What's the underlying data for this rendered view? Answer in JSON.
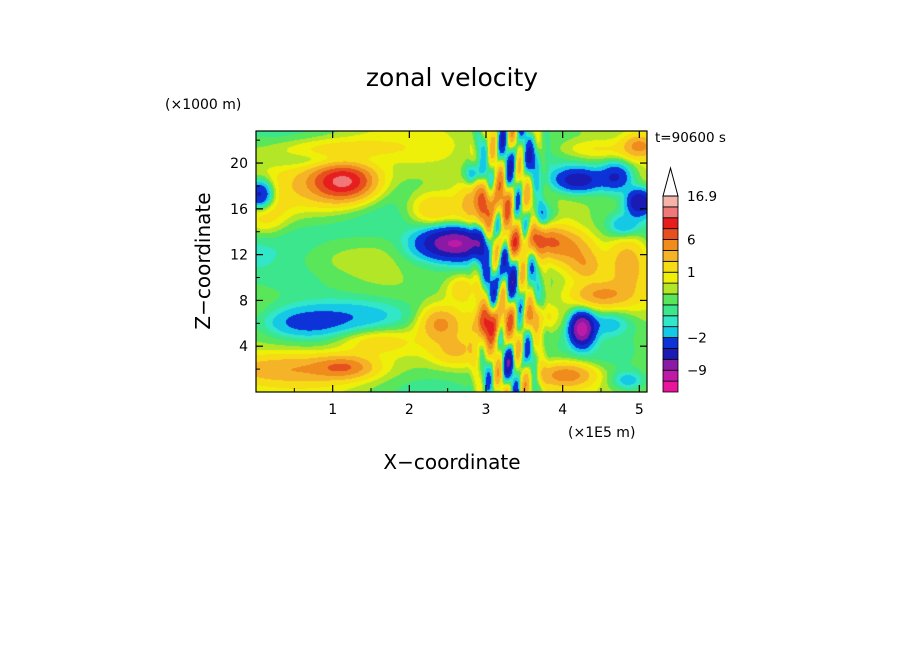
{
  "chart_data": {
    "type": "heatmap",
    "title": "zonal velocity",
    "xlabel": "X−coordinate",
    "ylabel": "Z−coordinate",
    "x_unit": "(×1E5 m)",
    "y_unit": "(×1000 m)",
    "time_label": "t=90600 s",
    "xlim": [
      0,
      5.1
    ],
    "ylim": [
      0,
      22.8
    ],
    "x_ticks": [
      1,
      2,
      3,
      4,
      5
    ],
    "y_ticks": [
      4,
      8,
      12,
      16,
      20
    ],
    "x_tick_labels": [
      "1",
      "2",
      "3",
      "4",
      "5"
    ],
    "y_tick_labels": [
      "4",
      "8",
      "12",
      "16",
      "20"
    ],
    "colorbar": {
      "labels": [
        {
          "text": "16.9",
          "value": 16.9
        },
        {
          "text": "6",
          "value": 6
        },
        {
          "text": "1",
          "value": 1
        },
        {
          "text": "−2",
          "value": -2
        },
        {
          "text": "−9",
          "value": -9
        }
      ],
      "bins": [
        {
          "value": -13,
          "color": "#e8149c"
        },
        {
          "value": -10,
          "color": "#be1aa8"
        },
        {
          "value": -7.5,
          "color": "#8a1aa6"
        },
        {
          "value": -5,
          "color": "#1a1ab4"
        },
        {
          "value": -3,
          "color": "#0c32d8"
        },
        {
          "value": -1.75,
          "color": "#14c8e6"
        },
        {
          "value": -1.25,
          "color": "#32e6c8"
        },
        {
          "value": -0.75,
          "color": "#3ce68c"
        },
        {
          "value": -0.25,
          "color": "#5ae65a"
        },
        {
          "value": 0.25,
          "color": "#b4e628"
        },
        {
          "value": 0.75,
          "color": "#eef00a"
        },
        {
          "value": 1.5,
          "color": "#f5dc14"
        },
        {
          "value": 3,
          "color": "#f5b428"
        },
        {
          "value": 4.5,
          "color": "#f08c1e"
        },
        {
          "value": 6.5,
          "color": "#e6501e"
        },
        {
          "value": 9,
          "color": "#e61e1e"
        },
        {
          "value": 11.5,
          "color": "#f07878"
        },
        {
          "value": 14.5,
          "color": "#f5b4aa"
        },
        {
          "value": 18,
          "color": "#ffffff"
        }
      ]
    },
    "field_blobs": [
      {
        "x": 1.15,
        "z": 18.4,
        "amp": 9,
        "rx": 0.35,
        "rz": 1.4
      },
      {
        "x": 0.95,
        "z": 18.2,
        "amp": 3,
        "rx": 0.6,
        "rz": 2.2
      },
      {
        "x": 0.45,
        "z": 2.0,
        "amp": 3,
        "rx": 1.0,
        "rz": 1.2
      },
      {
        "x": 1.15,
        "z": 2.2,
        "amp": 4,
        "rx": 0.35,
        "rz": 0.9
      },
      {
        "x": 1.55,
        "z": 4.4,
        "amp": 2,
        "rx": 0.5,
        "rz": 1.2
      },
      {
        "x": 0.1,
        "z": 15.5,
        "amp": 2,
        "rx": 0.3,
        "rz": 2.0
      },
      {
        "x": 1.0,
        "z": 21.2,
        "amp": 1.5,
        "rx": 0.8,
        "rz": 1.0
      },
      {
        "x": 1.4,
        "z": 6.6,
        "amp": -1.6,
        "rx": 0.9,
        "rz": 1.6
      },
      {
        "x": 0.6,
        "z": 6.0,
        "amp": -1.8,
        "rx": 0.5,
        "rz": 1.2
      },
      {
        "x": 0.25,
        "z": 12.8,
        "amp": -0.8,
        "rx": 1.0,
        "rz": 2.5
      },
      {
        "x": 1.3,
        "z": 14.0,
        "amp": -0.6,
        "rx": 0.9,
        "rz": 2.0
      },
      {
        "x": 0.8,
        "z": 10.0,
        "amp": -0.6,
        "rx": 1.0,
        "rz": 1.5
      },
      {
        "x": 0.05,
        "z": 17.2,
        "amp": -6,
        "rx": 0.18,
        "rz": 1.3
      },
      {
        "x": 0.95,
        "z": 20.2,
        "amp": -1.5,
        "rx": 0.6,
        "rz": 0.8
      },
      {
        "x": 2.6,
        "z": 13.0,
        "amp": -9,
        "rx": 0.42,
        "rz": 1.3
      },
      {
        "x": 2.3,
        "z": 16.0,
        "amp": 2.5,
        "rx": 0.3,
        "rz": 1.4
      },
      {
        "x": 2.4,
        "z": 6.0,
        "amp": 4,
        "rx": 0.25,
        "rz": 1.4
      },
      {
        "x": 2.6,
        "z": 3.5,
        "amp": 2,
        "rx": 0.3,
        "rz": 1.2
      },
      {
        "x": 2.7,
        "z": 9.0,
        "amp": 2.5,
        "rx": 0.2,
        "rz": 1.2
      },
      {
        "x": 2.05,
        "z": 12.0,
        "amp": -0.5,
        "rx": 0.3,
        "rz": 1.5
      },
      {
        "x": 3.05,
        "z": 6.0,
        "amp": 7,
        "rx": 0.2,
        "rz": 1.5
      },
      {
        "x": 3.0,
        "z": 16.5,
        "amp": 5,
        "rx": 0.3,
        "rz": 1.8
      },
      {
        "x": 3.3,
        "z": 13.0,
        "amp": 4,
        "rx": 0.2,
        "rz": 1.0
      },
      {
        "x": 3.2,
        "z": 10.0,
        "amp": -2.5,
        "rx": 0.15,
        "rz": 1.5
      },
      {
        "x": 3.35,
        "z": 2.5,
        "amp": -2.5,
        "rx": 0.15,
        "rz": 1.2
      },
      {
        "x": 2.85,
        "z": 19.0,
        "amp": -3,
        "rx": 0.12,
        "rz": 1.0
      },
      {
        "x": 3.7,
        "z": 15.5,
        "amp": -2.5,
        "rx": 0.2,
        "rz": 1.2
      },
      {
        "x": 3.55,
        "z": 20.5,
        "amp": -1.5,
        "rx": 0.2,
        "rz": 1.2
      },
      {
        "x": 3.75,
        "z": 13.2,
        "amp": 5,
        "rx": 0.28,
        "rz": 1.2
      },
      {
        "x": 4.1,
        "z": 12.5,
        "amp": 3.5,
        "rx": 0.3,
        "rz": 1.5
      },
      {
        "x": 4.05,
        "z": 1.5,
        "amp": 5,
        "rx": 0.35,
        "rz": 1.0
      },
      {
        "x": 3.6,
        "z": 6.5,
        "amp": 2.5,
        "rx": 0.3,
        "rz": 1.2
      },
      {
        "x": 4.5,
        "z": 8.5,
        "amp": 3.5,
        "rx": 0.35,
        "rz": 1.0
      },
      {
        "x": 4.4,
        "z": 21.2,
        "amp": 1.5,
        "rx": 0.5,
        "rz": 0.9
      },
      {
        "x": 4.3,
        "z": 11.0,
        "amp": 2.5,
        "rx": 0.2,
        "rz": 1.2
      },
      {
        "x": 4.85,
        "z": 11.5,
        "amp": 3,
        "rx": 0.25,
        "rz": 2.5
      },
      {
        "x": 5.0,
        "z": 21.5,
        "amp": 4,
        "rx": 0.2,
        "rz": 1.0
      },
      {
        "x": 4.25,
        "z": 5.5,
        "amp": -10,
        "rx": 0.14,
        "rz": 1.3
      },
      {
        "x": 4.2,
        "z": 18.5,
        "amp": -5,
        "rx": 0.3,
        "rz": 1.0
      },
      {
        "x": 4.7,
        "z": 18.8,
        "amp": -4,
        "rx": 0.2,
        "rz": 1.2
      },
      {
        "x": 5.0,
        "z": 16.6,
        "amp": -6,
        "rx": 0.16,
        "rz": 1.1
      },
      {
        "x": 4.6,
        "z": 6.0,
        "amp": -1.8,
        "rx": 0.3,
        "rz": 1.0
      },
      {
        "x": 4.85,
        "z": 1.0,
        "amp": -1.8,
        "rx": 0.2,
        "rz": 0.8
      },
      {
        "x": 4.8,
        "z": 14.5,
        "amp": -2.2,
        "rx": 0.2,
        "rz": 1.0
      }
    ],
    "field_stripes": [
      {
        "x0": 2.75,
        "x1": 3.85,
        "amp": 2.8,
        "kx": 20,
        "kz": 0.55
      },
      {
        "x0": 2.9,
        "x1": 3.7,
        "amp": 2.0,
        "kx": 31,
        "kz": -0.9
      }
    ]
  }
}
